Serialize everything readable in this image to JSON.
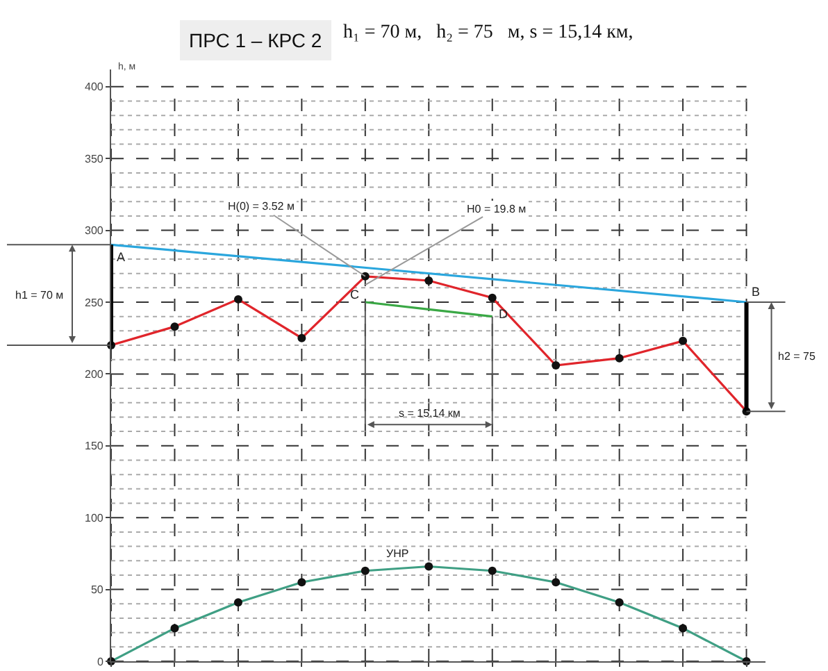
{
  "chart_data": {
    "type": "line",
    "title": "ПРС 1 – КРС 2",
    "subtitle": "h₁ = 70 м,   h₂ = 75   м, s = 15,14 км,",
    "ylabel": "h, м",
    "categories": [
      null,
      null,
      null,
      null,
      null,
      null,
      null,
      null,
      null,
      null,
      null
    ],
    "ylim": [
      0,
      412
    ],
    "yticks": [
      0,
      50,
      100,
      150,
      200,
      250,
      300,
      350,
      400
    ],
    "tick_labels": "y",
    "grid": true,
    "legend": false,
    "line_style": "solid",
    "series": [
      {
        "color": "#e0252b",
        "marker": "circle",
        "values": [
          220,
          233,
          252,
          225,
          268,
          265,
          253,
          206,
          211,
          223,
          174
        ]
      },
      {
        "color": "#2aa6dd",
        "marker": "none",
        "values": [
          290,
          null,
          null,
          null,
          null,
          null,
          null,
          null,
          null,
          null,
          250
        ]
      },
      {
        "color": "#3aa845",
        "marker": "none",
        "values": [
          null,
          null,
          null,
          null,
          250,
          245,
          240,
          null,
          null,
          null,
          null
        ]
      },
      {
        "name": "УНР",
        "color": "#3f9f84",
        "marker": "circle",
        "values": [
          0,
          23,
          41,
          55,
          63,
          66,
          63,
          55,
          41,
          23,
          0
        ]
      }
    ],
    "annotations": [
      "A",
      "B",
      "C",
      "D",
      "H(0) = 3.52 м",
      "H0 = 19.8 м",
      "s = 15.14 км",
      "h1 = 70 м",
      "h2 = 75"
    ]
  }
}
